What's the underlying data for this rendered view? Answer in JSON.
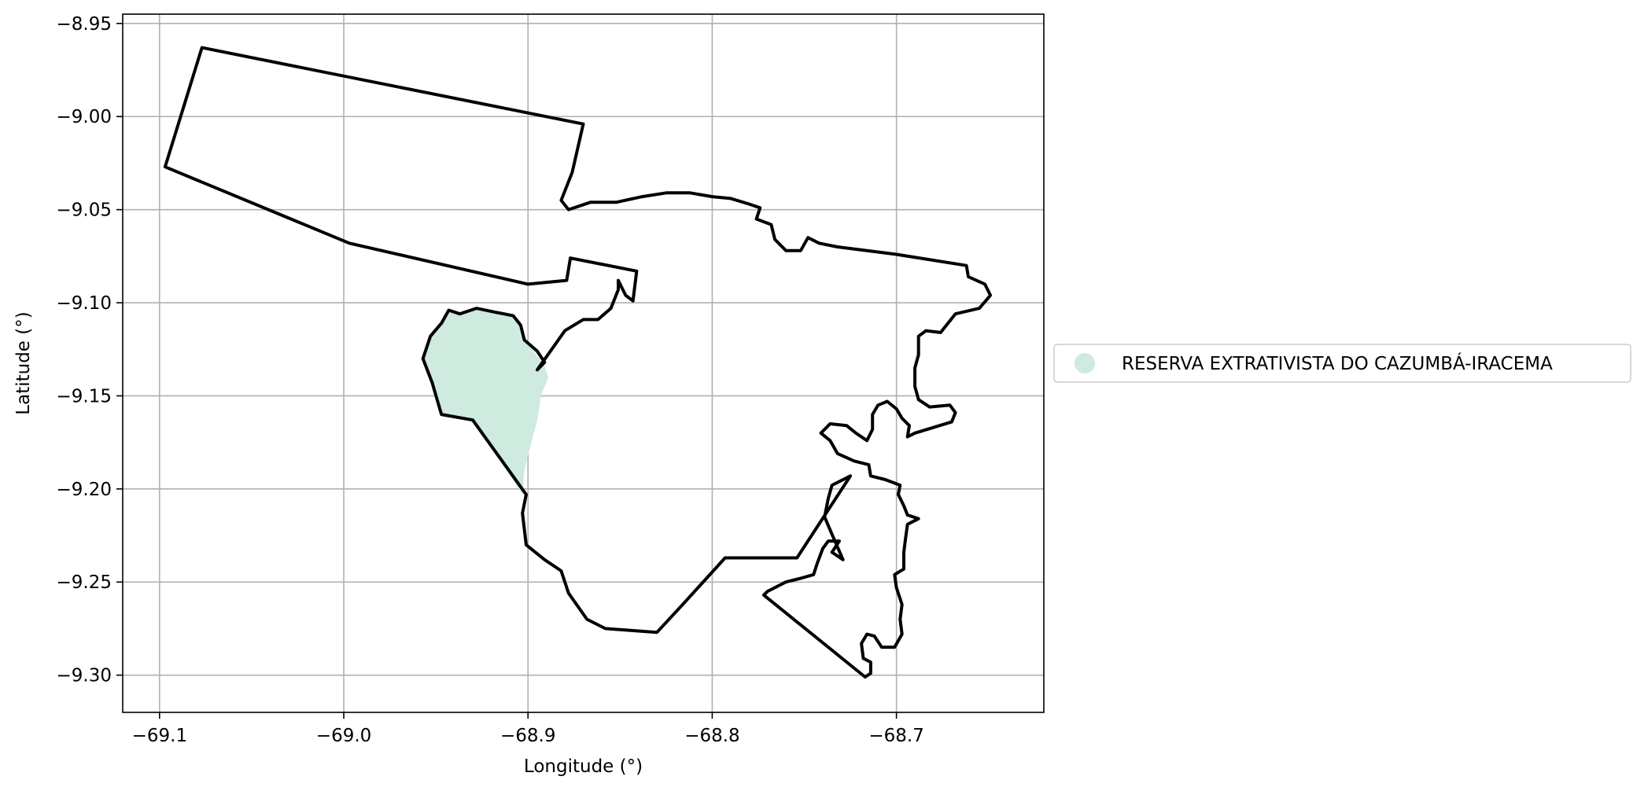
{
  "chart_data": {
    "type": "map",
    "xlabel": "Longitude (°)",
    "ylabel": "Latitude (°)",
    "xlim": [
      -69.12,
      -68.62
    ],
    "ylim": [
      -9.32,
      -8.945
    ],
    "grid": true,
    "x_ticks": [
      -69.1,
      -69.0,
      -68.9,
      -68.8,
      -68.7
    ],
    "x_tick_labels": [
      "−69.1",
      "−69.0",
      "−68.9",
      "−68.8",
      "−68.7"
    ],
    "y_ticks": [
      -8.95,
      -9.0,
      -9.05,
      -9.1,
      -9.15,
      -9.2,
      -9.25,
      -9.3
    ],
    "y_tick_labels": [
      "−8.95",
      "−9.00",
      "−9.05",
      "−9.10",
      "−9.15",
      "−9.20",
      "−9.25",
      "−9.30"
    ],
    "legend": {
      "placement": "right",
      "entries": [
        {
          "label": "RESERVA EXTRATIVISTA DO CAZUMBÁ-IRACEMA",
          "color": "#cfeadf",
          "marker": "circle"
        }
      ]
    },
    "boundary": {
      "name": "outline",
      "stroke": "#000000",
      "points": [
        [
          -69.077,
          -8.963
        ],
        [
          -68.87,
          -9.004
        ],
        [
          -68.876,
          -9.03
        ],
        [
          -68.882,
          -9.045
        ],
        [
          -68.878,
          -9.05
        ],
        [
          -68.866,
          -9.046
        ],
        [
          -68.852,
          -9.046
        ],
        [
          -68.838,
          -9.043
        ],
        [
          -68.825,
          -9.041
        ],
        [
          -68.812,
          -9.041
        ],
        [
          -68.8,
          -9.043
        ],
        [
          -68.79,
          -9.044
        ],
        [
          -68.78,
          -9.047
        ],
        [
          -68.774,
          -9.049
        ],
        [
          -68.776,
          -9.055
        ],
        [
          -68.768,
          -9.058
        ],
        [
          -68.766,
          -9.066
        ],
        [
          -68.76,
          -9.072
        ],
        [
          -68.752,
          -9.072
        ],
        [
          -68.748,
          -9.065
        ],
        [
          -68.742,
          -9.068
        ],
        [
          -68.732,
          -9.07
        ],
        [
          -68.7,
          -9.074
        ],
        [
          -68.662,
          -9.08
        ],
        [
          -68.661,
          -9.086
        ],
        [
          -68.652,
          -9.09
        ],
        [
          -68.649,
          -9.096
        ],
        [
          -68.655,
          -9.103
        ],
        [
          -68.668,
          -9.106
        ],
        [
          -68.676,
          -9.116
        ],
        [
          -68.684,
          -9.115
        ],
        [
          -68.688,
          -9.118
        ],
        [
          -68.688,
          -9.128
        ],
        [
          -68.69,
          -9.135
        ],
        [
          -68.69,
          -9.145
        ],
        [
          -68.688,
          -9.152
        ],
        [
          -68.682,
          -9.156
        ],
        [
          -68.671,
          -9.155
        ],
        [
          -68.668,
          -9.159
        ],
        [
          -68.67,
          -9.164
        ],
        [
          -68.68,
          -9.167
        ],
        [
          -68.69,
          -9.17
        ],
        [
          -68.694,
          -9.172
        ],
        [
          -68.693,
          -9.166
        ],
        [
          -68.697,
          -9.162
        ],
        [
          -68.7,
          -9.157
        ],
        [
          -68.705,
          -9.153
        ],
        [
          -68.71,
          -9.155
        ],
        [
          -68.713,
          -9.16
        ],
        [
          -68.713,
          -9.168
        ],
        [
          -68.716,
          -9.174
        ],
        [
          -68.722,
          -9.17
        ],
        [
          -68.727,
          -9.166
        ],
        [
          -68.736,
          -9.165
        ],
        [
          -68.741,
          -9.17
        ],
        [
          -68.736,
          -9.174
        ],
        [
          -68.732,
          -9.181
        ],
        [
          -68.723,
          -9.185
        ],
        [
          -68.715,
          -9.187
        ],
        [
          -68.714,
          -9.193
        ],
        [
          -68.706,
          -9.195
        ],
        [
          -68.698,
          -9.198
        ],
        [
          -68.699,
          -9.203
        ],
        [
          -68.696,
          -9.209
        ],
        [
          -68.694,
          -9.214
        ],
        [
          -68.688,
          -9.216
        ],
        [
          -68.694,
          -9.219
        ],
        [
          -68.695,
          -9.226
        ],
        [
          -68.696,
          -9.234
        ],
        [
          -68.696,
          -9.243
        ],
        [
          -68.701,
          -9.246
        ],
        [
          -68.7,
          -9.253
        ],
        [
          -68.697,
          -9.262
        ],
        [
          -68.698,
          -9.27
        ],
        [
          -68.697,
          -9.278
        ],
        [
          -68.701,
          -9.285
        ],
        [
          -68.708,
          -9.285
        ],
        [
          -68.712,
          -9.279
        ],
        [
          -68.716,
          -9.278
        ],
        [
          -68.719,
          -9.283
        ],
        [
          -68.718,
          -9.291
        ],
        [
          -68.714,
          -9.293
        ],
        [
          -68.714,
          -9.299
        ],
        [
          -68.717,
          -9.301
        ],
        [
          -68.772,
          -9.257
        ],
        [
          -68.77,
          -9.255
        ],
        [
          -68.76,
          -9.25
        ],
        [
          -68.752,
          -9.248
        ],
        [
          -68.745,
          -9.246
        ],
        [
          -68.743,
          -9.24
        ],
        [
          -68.74,
          -9.232
        ],
        [
          -68.737,
          -9.228
        ],
        [
          -68.731,
          -9.228
        ],
        [
          -68.735,
          -9.234
        ],
        [
          -68.729,
          -9.238
        ],
        [
          -68.736,
          -9.222
        ],
        [
          -68.739,
          -9.215
        ],
        [
          -68.737,
          -9.205
        ],
        [
          -68.735,
          -9.198
        ],
        [
          -68.725,
          -9.193
        ],
        [
          -68.754,
          -9.237
        ],
        [
          -68.793,
          -9.237
        ],
        [
          -68.816,
          -9.262
        ],
        [
          -68.83,
          -9.277
        ],
        [
          -68.858,
          -9.275
        ],
        [
          -68.868,
          -9.27
        ],
        [
          -68.878,
          -9.256
        ],
        [
          -68.882,
          -9.244
        ],
        [
          -68.891,
          -9.238
        ],
        [
          -68.901,
          -9.23
        ],
        [
          -68.903,
          -9.213
        ],
        [
          -68.901,
          -9.203
        ],
        [
          -68.93,
          -9.163
        ],
        [
          -68.947,
          -9.16
        ],
        [
          -68.952,
          -9.143
        ],
        [
          -68.957,
          -9.13
        ],
        [
          -68.953,
          -9.118
        ],
        [
          -68.947,
          -9.111
        ],
        [
          -68.943,
          -9.104
        ],
        [
          -68.937,
          -9.106
        ],
        [
          -68.928,
          -9.103
        ],
        [
          -68.918,
          -9.105
        ],
        [
          -68.908,
          -9.107
        ],
        [
          -68.904,
          -9.112
        ],
        [
          -68.902,
          -9.12
        ],
        [
          -68.895,
          -9.126
        ],
        [
          -68.891,
          -9.132
        ],
        [
          -68.895,
          -9.136
        ],
        [
          -68.88,
          -9.115
        ],
        [
          -68.87,
          -9.109
        ],
        [
          -68.862,
          -9.109
        ],
        [
          -68.855,
          -9.103
        ],
        [
          -68.851,
          -9.093
        ],
        [
          -68.851,
          -9.088
        ],
        [
          -68.847,
          -9.096
        ],
        [
          -68.843,
          -9.099
        ],
        [
          -68.841,
          -9.083
        ],
        [
          -68.877,
          -9.076
        ],
        [
          -68.879,
          -9.088
        ],
        [
          -68.9,
          -9.09
        ],
        [
          -68.997,
          -9.068
        ],
        [
          -69.097,
          -9.027
        ],
        [
          -69.077,
          -8.963
        ]
      ]
    },
    "highlight": {
      "name": "RESERVA EXTRATIVISTA DO CAZUMBÁ-IRACEMA",
      "fill": "#cfeadf",
      "points": [
        [
          -68.947,
          -9.111
        ],
        [
          -68.943,
          -9.104
        ],
        [
          -68.937,
          -9.106
        ],
        [
          -68.928,
          -9.103
        ],
        [
          -68.918,
          -9.105
        ],
        [
          -68.908,
          -9.107
        ],
        [
          -68.904,
          -9.112
        ],
        [
          -68.902,
          -9.12
        ],
        [
          -68.897,
          -9.126
        ],
        [
          -68.891,
          -9.134
        ],
        [
          -68.889,
          -9.14
        ],
        [
          -68.893,
          -9.15
        ],
        [
          -68.895,
          -9.163
        ],
        [
          -68.899,
          -9.178
        ],
        [
          -68.902,
          -9.19
        ],
        [
          -68.903,
          -9.203
        ],
        [
          -68.93,
          -9.163
        ],
        [
          -68.947,
          -9.16
        ],
        [
          -68.952,
          -9.143
        ],
        [
          -68.957,
          -9.13
        ],
        [
          -68.953,
          -9.118
        ],
        [
          -68.947,
          -9.111
        ]
      ]
    }
  }
}
